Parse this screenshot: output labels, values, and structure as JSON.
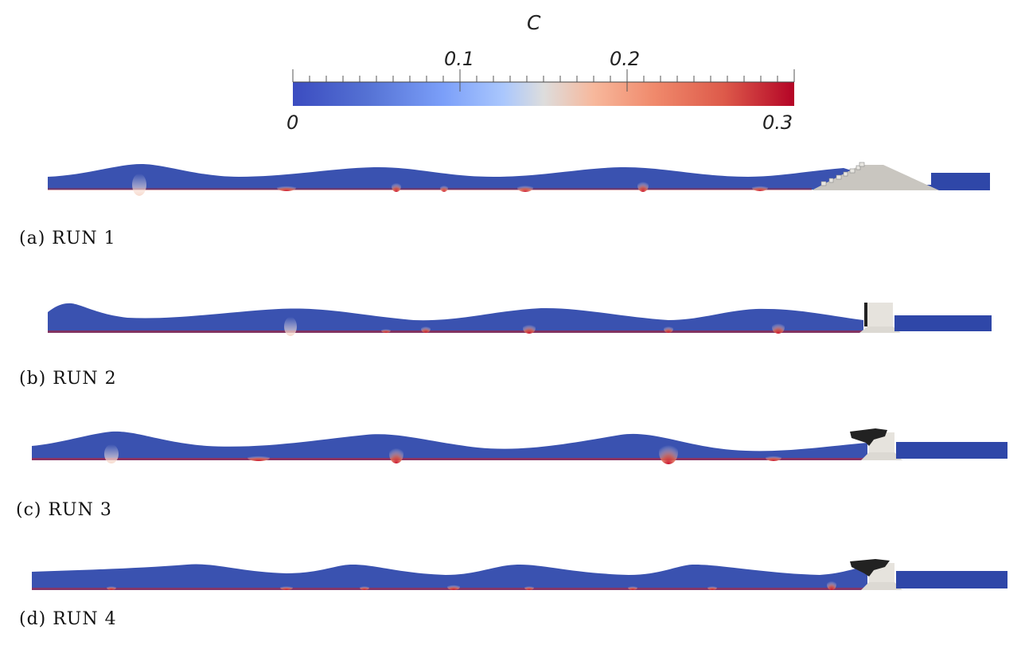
{
  "colorbar": {
    "title": "C",
    "tick_labels": {
      "t01": "0.1",
      "t02": "0.2"
    },
    "min_label": "0",
    "max_label": "0.3",
    "min": 0,
    "max": 0.3,
    "colormap": [
      "#3b4cc0",
      "#5572d4",
      "#7b9ff9",
      "#aac7fd",
      "#dddddd",
      "#f7b89c",
      "#f08a6c",
      "#dd5a4a",
      "#b40426"
    ]
  },
  "colors": {
    "water": "#3a52b0",
    "sediment": "#c8102e",
    "structure": "#e6e3dd",
    "mound": "#c9c6c0",
    "debris": "#222222"
  },
  "panels": [
    {
      "caption": "(a)  RUN  1",
      "structure": "sloped breakwater"
    },
    {
      "caption": "(b)  RUN  2",
      "structure": "vertical caisson"
    },
    {
      "caption": "(c)  RUN  3",
      "structure": "caisson with armour"
    },
    {
      "caption": "(d)  RUN  4",
      "structure": "caisson with armour"
    }
  ]
}
